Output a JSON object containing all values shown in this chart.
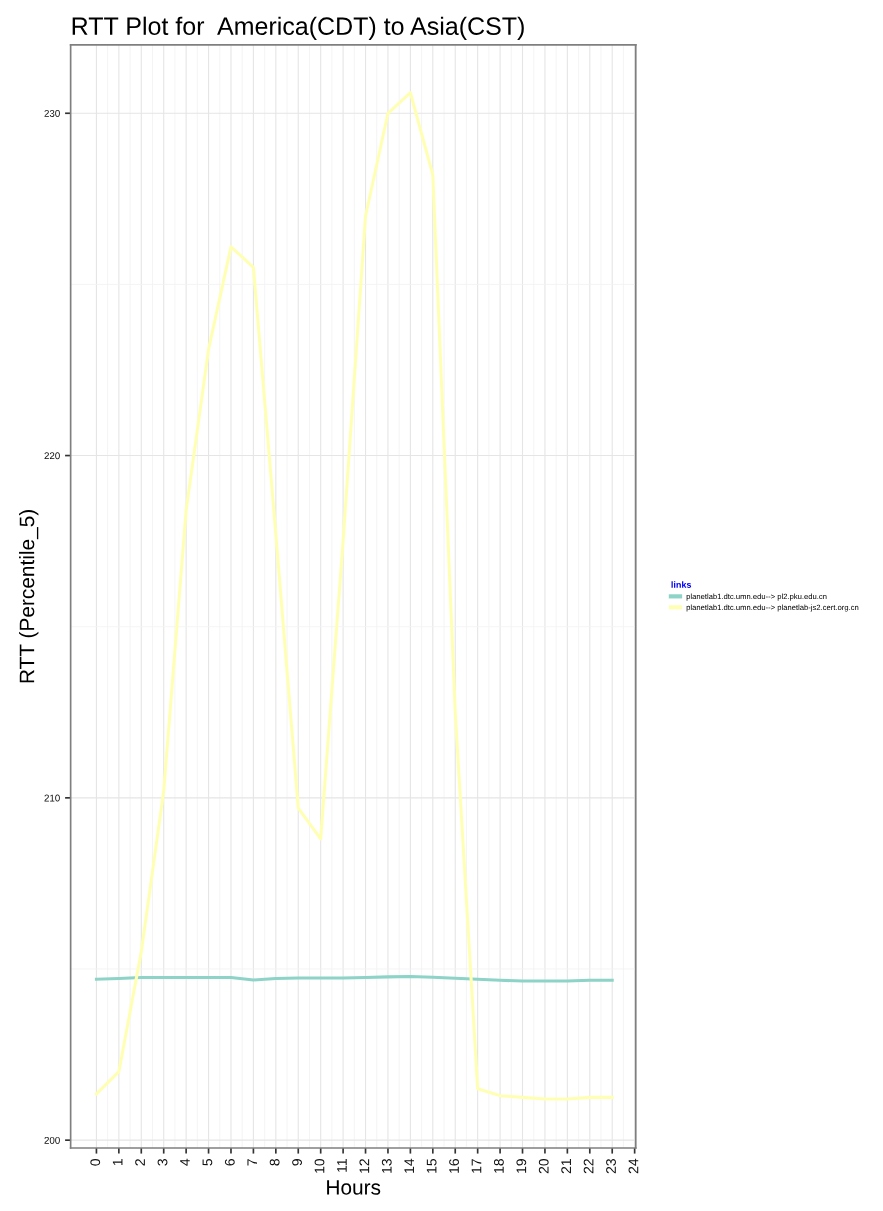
{
  "chart_data": {
    "type": "line",
    "title": "RTT Plot for  America(CDT) to Asia(CST)",
    "xlabel": "Hours",
    "ylabel": "RTT (Percentile_5)",
    "legend_title": "links",
    "x": [
      0,
      1,
      2,
      3,
      4,
      5,
      6,
      7,
      8,
      9,
      10,
      11,
      12,
      13,
      14,
      15,
      16,
      17,
      18,
      19,
      20,
      21,
      22,
      23
    ],
    "series": [
      {
        "name": "planetlab1.dtc.umn.edu--> pl2.pku.edu.cn",
        "color": "#8dd3c7",
        "values": [
          204.7,
          204.72,
          204.75,
          204.75,
          204.75,
          204.75,
          204.75,
          204.68,
          204.72,
          204.74,
          204.74,
          204.74,
          204.75,
          204.77,
          204.78,
          204.76,
          204.73,
          204.7,
          204.67,
          204.65,
          204.65,
          204.65,
          204.67,
          204.67
        ]
      },
      {
        "name": "planetlab1.dtc.umn.edu--> planetlab-js2.cert.org.cn",
        "color": "#ffffb3",
        "values": [
          201.35,
          202.0,
          205.5,
          210.2,
          218.4,
          223.1,
          226.1,
          225.5,
          217.7,
          209.7,
          208.8,
          217.5,
          227.0,
          230.0,
          230.6,
          228.2,
          212.5,
          201.5,
          201.3,
          201.25,
          201.2,
          201.2,
          201.25,
          201.25
        ]
      }
    ],
    "xlim": [
      -1.15,
      24.05
    ],
    "xticks": [
      0,
      1,
      2,
      3,
      4,
      5,
      6,
      7,
      8,
      9,
      10,
      11,
      12,
      13,
      14,
      15,
      16,
      17,
      18,
      19,
      20,
      21,
      22,
      23,
      24
    ],
    "ylim": [
      199.77,
      232.0
    ],
    "yticks": [
      200,
      210,
      220,
      230
    ],
    "grid": true,
    "legend": "right",
    "marker": "none",
    "line_style": "solid"
  }
}
